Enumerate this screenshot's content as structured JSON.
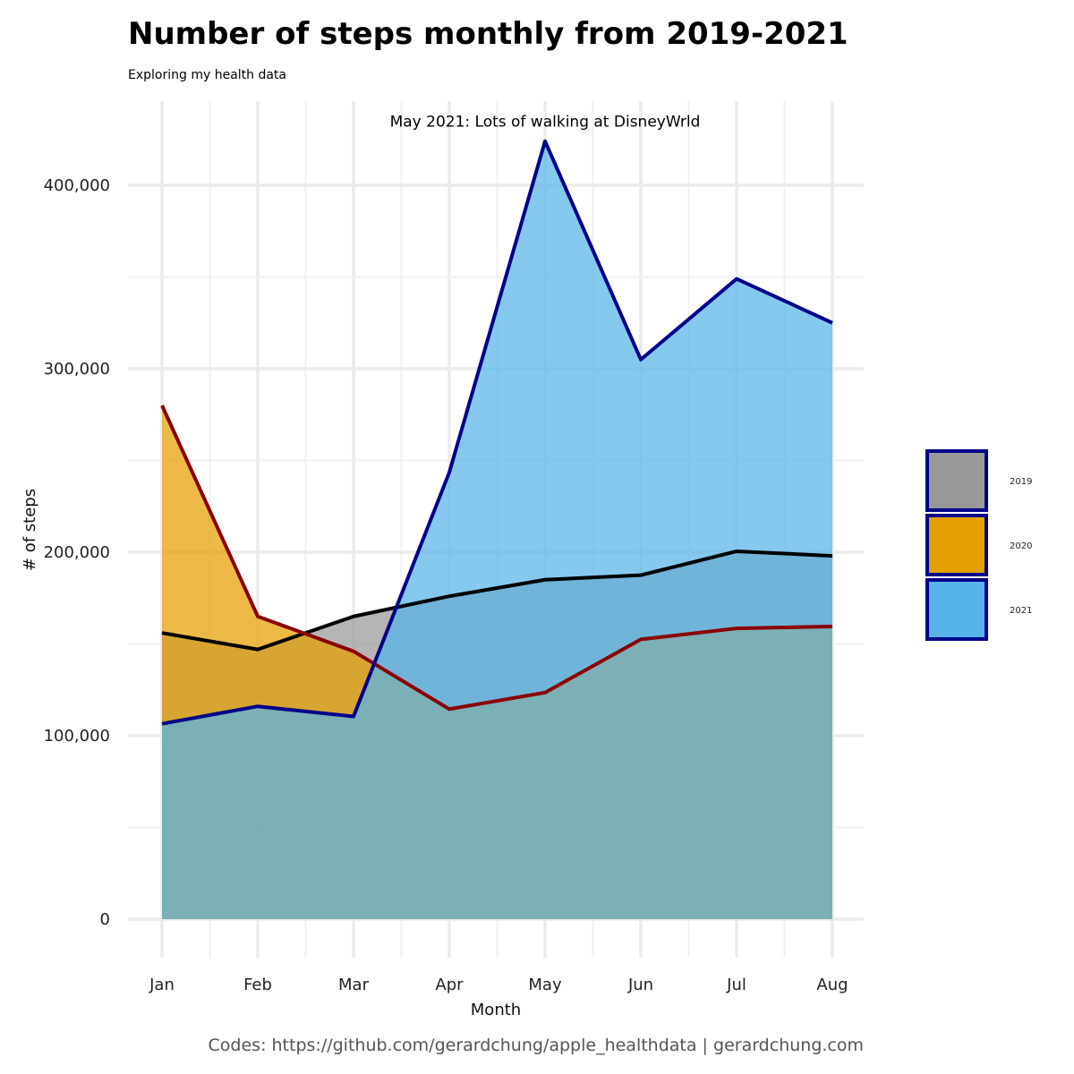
{
  "chart_data": {
    "type": "area",
    "title": "Number of steps monthly from 2019-2021",
    "subtitle": "Exploring my health data",
    "xlabel": "Month",
    "ylabel": "# of steps",
    "categories": [
      "Jan",
      "Feb",
      "Mar",
      "Apr",
      "May",
      "Jun",
      "Jul",
      "Aug"
    ],
    "ylim": [
      -20000,
      445000
    ],
    "yticks": [
      0,
      100000,
      200000,
      300000,
      400000
    ],
    "ytick_labels": [
      "0",
      "100,000",
      "200,000",
      "300,000",
      "400,000"
    ],
    "grid": true,
    "legend_position": "right",
    "series": [
      {
        "name": "2019",
        "values": [
          156000,
          147000,
          165000,
          176000,
          185000,
          187500,
          200500,
          198000
        ],
        "fill": "#999999",
        "line": "#000000"
      },
      {
        "name": "2020",
        "values": [
          280000,
          165000,
          146000,
          114500,
          123500,
          152500,
          158500,
          159500
        ],
        "fill": "#E69F00",
        "line": "#8B0000"
      },
      {
        "name": "2021",
        "values": [
          106500,
          116000,
          110500,
          243500,
          424000,
          305000,
          349000,
          325000
        ],
        "fill": "#56B4E9",
        "line": "#00008B"
      }
    ],
    "annotation": {
      "text": "May 2021: Lots of walking at DisneyWrld",
      "x": "May",
      "y": 435000
    },
    "caption": "Codes: https://github.com/gerardchung/apple_healthdata | gerardchung.com"
  }
}
